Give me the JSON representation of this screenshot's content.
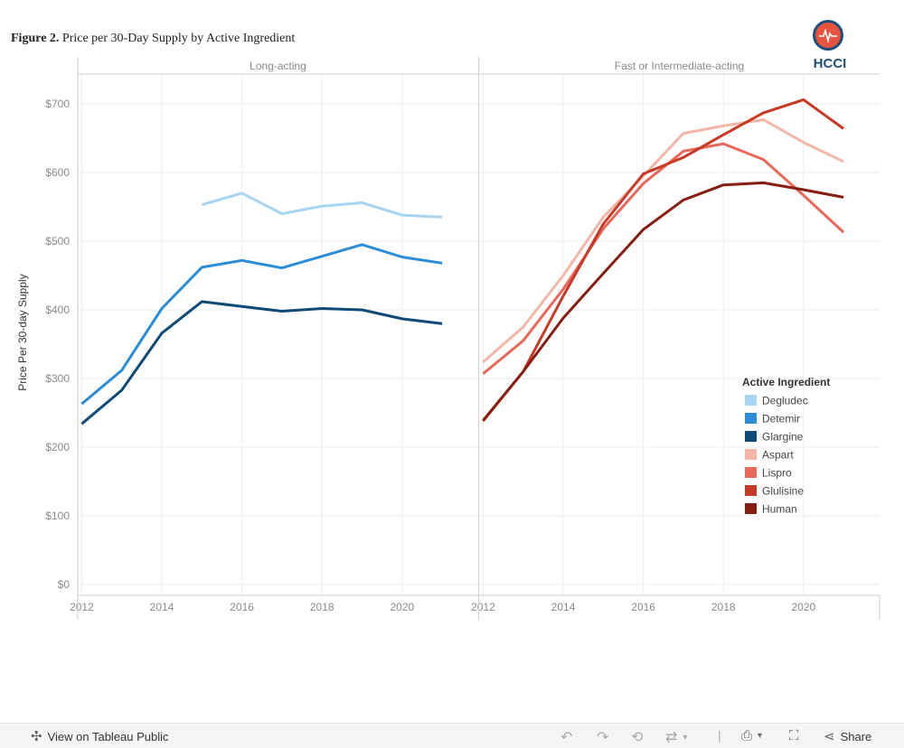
{
  "header": {
    "figure_label": "Figure 2.",
    "figure_title": "Price per 30-Day Supply by Active Ingredient",
    "logo_text": "HCCI"
  },
  "toolbar": {
    "view_label": "View on Tableau Public",
    "share_label": "Share",
    "icons": [
      "tableau-icon",
      "undo-icon",
      "redo-icon",
      "revert-icon",
      "refresh-icon",
      "dropdown-icon",
      "download-icon",
      "fullscreen-icon",
      "share-icon"
    ]
  },
  "chart_data": {
    "type": "line",
    "ylabel": "Price Per 30-day Supply",
    "yticks": [
      "$0",
      "$100",
      "$200",
      "$300",
      "$400",
      "$500",
      "$600",
      "$700"
    ],
    "ylim": [
      0,
      740
    ],
    "xlim": [
      2011.9,
      2021.9
    ],
    "xticks": [
      "2012",
      "2014",
      "2016",
      "2018",
      "2020"
    ],
    "grid": true,
    "legend": {
      "title": "Active Ingredient",
      "placement": "right"
    },
    "panels": [
      {
        "title": "Long-acting",
        "series": [
          {
            "name": "Degludec",
            "color": "#a6d4f2",
            "x": [
              2015,
              2016,
              2017,
              2018,
              2019,
              2020,
              2021
            ],
            "y": [
              553,
              570,
              540,
              551,
              556,
              538,
              535
            ]
          },
          {
            "name": "Detemir",
            "color": "#2b8cd8",
            "x": [
              2012,
              2013,
              2014,
              2015,
              2016,
              2017,
              2018,
              2019,
              2020,
              2021
            ],
            "y": [
              263,
              312,
              402,
              462,
              472,
              461,
              478,
              495,
              477,
              468
            ]
          },
          {
            "name": "Glargine",
            "color": "#0e4a75",
            "x": [
              2012,
              2013,
              2014,
              2015,
              2016,
              2017,
              2018,
              2019,
              2020,
              2021
            ],
            "y": [
              234,
              283,
              366,
              412,
              405,
              398,
              402,
              400,
              387,
              380
            ]
          }
        ]
      },
      {
        "title": "Fast or Intermediate-acting",
        "series": [
          {
            "name": "Aspart",
            "color": "#f4b6a8",
            "x": [
              2012,
              2013,
              2014,
              2015,
              2016,
              2017,
              2018,
              2019,
              2020,
              2021
            ],
            "y": [
              324,
              375,
              450,
              535,
              595,
              657,
              668,
              677,
              644,
              616
            ]
          },
          {
            "name": "Lispro",
            "color": "#e8685a",
            "x": [
              2012,
              2013,
              2014,
              2015,
              2016,
              2017,
              2018,
              2019,
              2020,
              2021
            ],
            "y": [
              307,
              355,
              430,
              518,
              584,
              631,
              642,
              619,
              567,
              513
            ]
          },
          {
            "name": "Glulisine",
            "color": "#c63a26",
            "x": [
              2012,
              2013,
              2014,
              2015,
              2016,
              2017,
              2018,
              2019,
              2020,
              2021
            ],
            "y": [
              238,
              310,
              420,
              525,
              598,
              622,
              655,
              687,
              706,
              664
            ]
          },
          {
            "name": "Human",
            "color": "#861e12",
            "x": [
              2012,
              2013,
              2014,
              2015,
              2016,
              2017,
              2018,
              2019,
              2020,
              2021
            ],
            "y": [
              239,
              310,
              388,
              453,
              517,
              560,
              582,
              585,
              575,
              564
            ]
          }
        ]
      }
    ]
  }
}
